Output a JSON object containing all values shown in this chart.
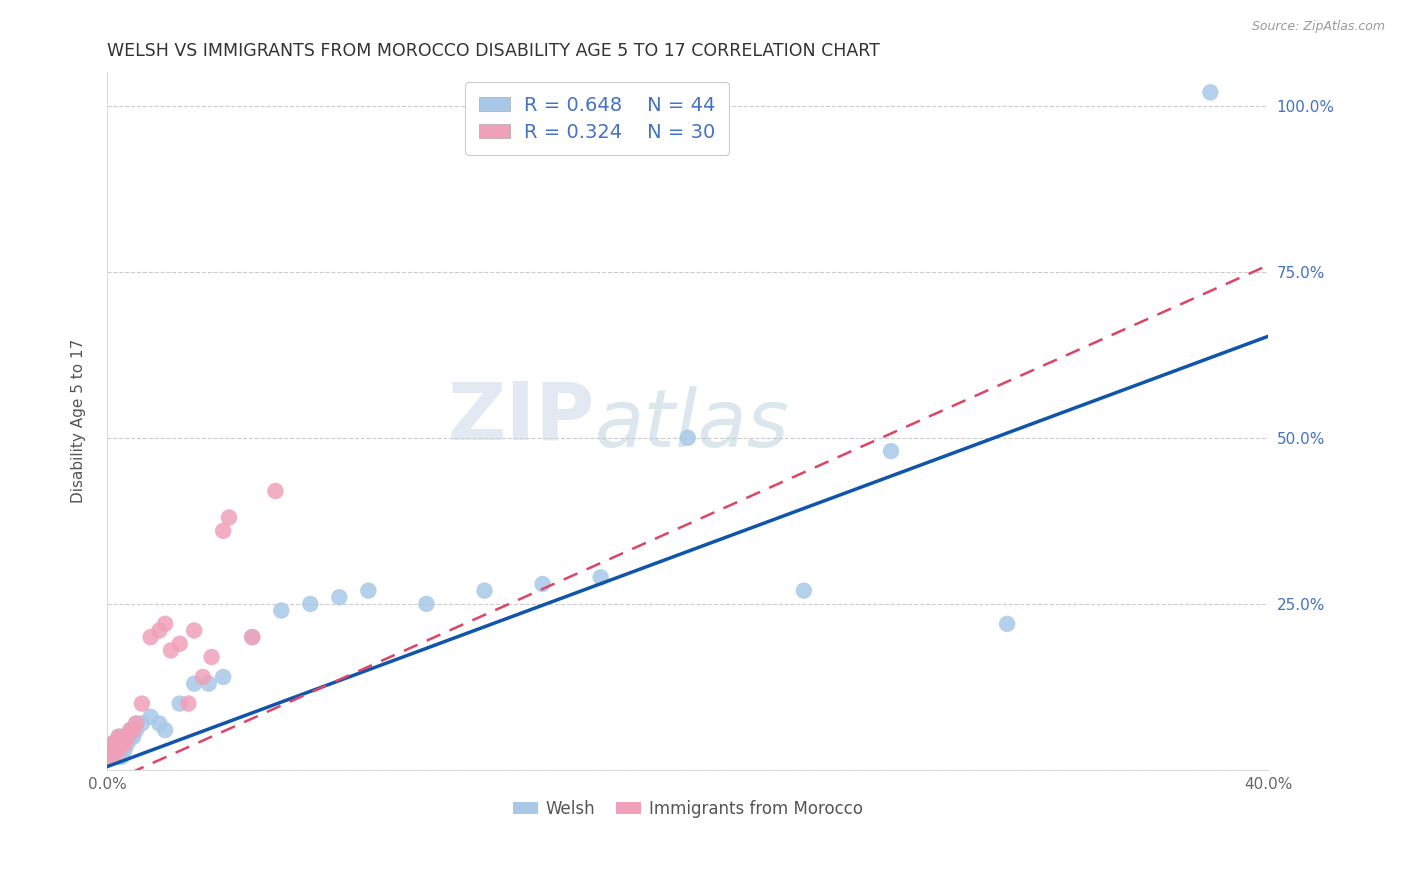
{
  "title": "WELSH VS IMMIGRANTS FROM MOROCCO DISABILITY AGE 5 TO 17 CORRELATION CHART",
  "source": "Source: ZipAtlas.com",
  "ylabel": "Disability Age 5 to 17",
  "xmin": 0.0,
  "xmax": 0.4,
  "ymin": 0.0,
  "ymax": 1.05,
  "y_tick_positions": [
    0.0,
    0.25,
    0.5,
    0.75,
    1.0
  ],
  "y_tick_labels": [
    "",
    "25.0%",
    "50.0%",
    "75.0%",
    "100.0%"
  ],
  "welsh_color": "#a8c8e8",
  "morocco_color": "#f0a0b8",
  "welsh_line_color": "#1155aa",
  "morocco_line_color": "#dd4466",
  "watermark_zip": "ZIP",
  "watermark_atlas": "atlas",
  "welsh_x": [
    0.001,
    0.001,
    0.002,
    0.002,
    0.002,
    0.003,
    0.003,
    0.003,
    0.004,
    0.004,
    0.004,
    0.005,
    0.005,
    0.005,
    0.006,
    0.006,
    0.007,
    0.008,
    0.008,
    0.009,
    0.01,
    0.01,
    0.012,
    0.015,
    0.018,
    0.02,
    0.025,
    0.03,
    0.035,
    0.04,
    0.05,
    0.06,
    0.07,
    0.08,
    0.09,
    0.11,
    0.13,
    0.15,
    0.17,
    0.2,
    0.24,
    0.27,
    0.31,
    0.38
  ],
  "welsh_y": [
    0.02,
    0.03,
    0.02,
    0.03,
    0.04,
    0.02,
    0.03,
    0.04,
    0.02,
    0.03,
    0.05,
    0.02,
    0.04,
    0.03,
    0.03,
    0.05,
    0.04,
    0.05,
    0.06,
    0.05,
    0.06,
    0.07,
    0.07,
    0.08,
    0.07,
    0.06,
    0.1,
    0.13,
    0.13,
    0.14,
    0.2,
    0.24,
    0.25,
    0.26,
    0.27,
    0.25,
    0.27,
    0.28,
    0.29,
    0.5,
    0.27,
    0.48,
    0.22,
    1.02
  ],
  "morocco_x": [
    0.001,
    0.001,
    0.002,
    0.002,
    0.002,
    0.003,
    0.003,
    0.004,
    0.004,
    0.005,
    0.005,
    0.006,
    0.007,
    0.008,
    0.009,
    0.01,
    0.012,
    0.015,
    0.018,
    0.02,
    0.022,
    0.025,
    0.028,
    0.03,
    0.033,
    0.036,
    0.04,
    0.042,
    0.05,
    0.058
  ],
  "morocco_y": [
    0.02,
    0.03,
    0.02,
    0.03,
    0.04,
    0.03,
    0.04,
    0.03,
    0.05,
    0.04,
    0.05,
    0.04,
    0.05,
    0.06,
    0.06,
    0.07,
    0.1,
    0.2,
    0.21,
    0.22,
    0.18,
    0.19,
    0.1,
    0.21,
    0.14,
    0.17,
    0.36,
    0.38,
    0.2,
    0.42
  ]
}
